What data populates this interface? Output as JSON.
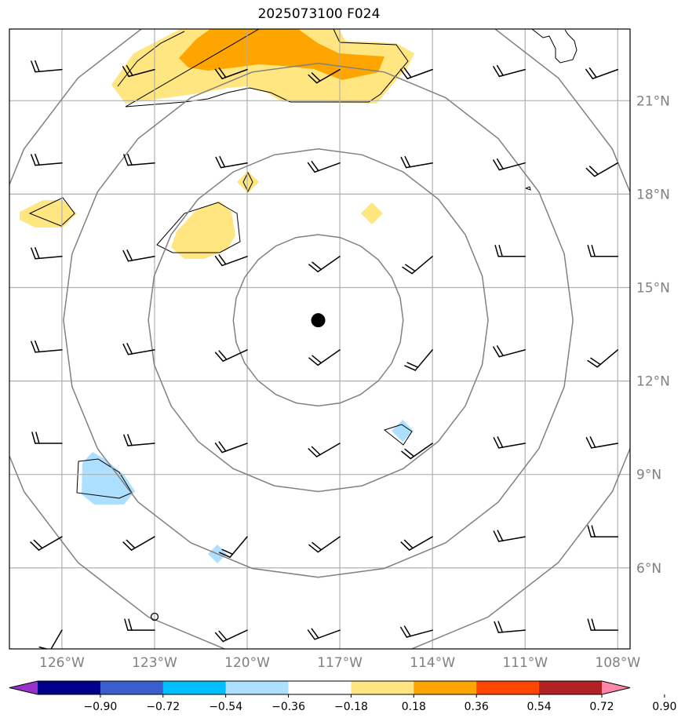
{
  "title": "2025073100 F024",
  "map": {
    "lon_range": [
      -127.7,
      -107.6
    ],
    "lat_range": [
      3.4,
      23.3
    ],
    "center": {
      "lon": -117.7,
      "lat": 13.95
    },
    "range_ring_radii_deg": [
      2.75,
      5.5,
      8.25,
      11.0
    ],
    "latitude_ticks": [
      {
        "value": 6,
        "label": "6°N"
      },
      {
        "value": 9,
        "label": "9°N"
      },
      {
        "value": 12,
        "label": "12°N"
      },
      {
        "value": 15,
        "label": "15°N"
      },
      {
        "value": 18,
        "label": "18°N"
      },
      {
        "value": 21,
        "label": "21°N"
      }
    ],
    "longitude_ticks": [
      {
        "value": -126,
        "label": "126°W"
      },
      {
        "value": -123,
        "label": "123°W"
      },
      {
        "value": -120,
        "label": "120°W"
      },
      {
        "value": -117,
        "label": "117°W"
      },
      {
        "value": -114,
        "label": "114°W"
      },
      {
        "value": -111,
        "label": "111°W"
      },
      {
        "value": -108,
        "label": "108°W"
      }
    ],
    "gridlines": true,
    "shaded_field_colors": {
      "yellow": "#ffe680",
      "orange": "#ffa500",
      "light_blue": "#addfff"
    },
    "wind_barbs_present": true
  },
  "colorbar": {
    "colors": [
      "#9932cc",
      "#00008b",
      "#3a5fcd",
      "#00bfff",
      "#addfff",
      "#ffffff",
      "#ffe680",
      "#ffa500",
      "#ff4500",
      "#b22222",
      "#ff88aa"
    ],
    "tick_labels": [
      "−0.90",
      "−0.72",
      "−0.54",
      "−0.36",
      "−0.18",
      "0.18",
      "0.36",
      "0.54",
      "0.72",
      "0.90"
    ],
    "extend": "both"
  }
}
